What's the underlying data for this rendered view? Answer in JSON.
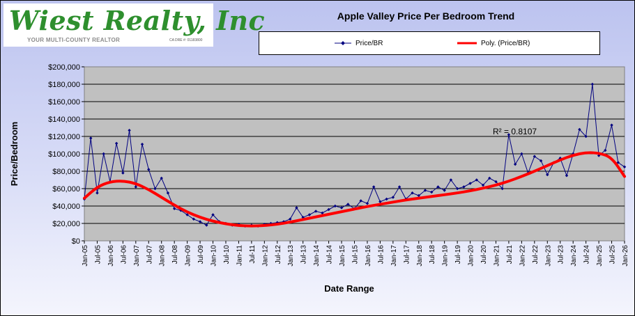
{
  "logo": {
    "name": "Wiest Realty, Inc",
    "tagline": "YOUR MULTI-COUNTY REALTOR",
    "license": "CA DRE #: 01183800"
  },
  "colors": {
    "series": "#000080",
    "trend": "#ff0000",
    "plot_bg": "#c0c0c0"
  },
  "chart_data": {
    "type": "line",
    "title": "Apple Valley Price Per Bedroom Trend",
    "xlabel": "Date Range",
    "ylabel": "Price/Bedroom",
    "ylim": [
      0,
      200000
    ],
    "yticks": [
      "$0",
      "$20,000",
      "$40,000",
      "$60,000",
      "$80,000",
      "$100,000",
      "$120,000",
      "$140,000",
      "$160,000",
      "$180,000",
      "$200,000"
    ],
    "xticks": [
      "Jan-05",
      "Jul-05",
      "Jan-06",
      "Jul-06",
      "Jan-07",
      "Jul-07",
      "Jan-08",
      "Jul-08",
      "Jan-09",
      "Jul-09",
      "Jan-10",
      "Jul-10",
      "Jan-11",
      "Jul-11",
      "Jan-12",
      "Jul-12",
      "Jan-13",
      "Jul-13",
      "Jan-14",
      "Jul-14",
      "Jan-15",
      "Jul-15",
      "Jan-16",
      "Jul-16",
      "Jan-17",
      "Jul-17",
      "Jan-18",
      "Jul-18",
      "Jan-19",
      "Jul-19",
      "Jan-20",
      "Jul-20",
      "Jan-21",
      "Jul-21",
      "Jan-22",
      "Jul-22",
      "Jan-23",
      "Jul-23",
      "Jan-24",
      "Jul-24",
      "Jan-25",
      "Jul-25",
      "Jan-26"
    ],
    "grid": true,
    "legend_position": "top",
    "annotation": "R² = 0.8107",
    "series": [
      {
        "name": "Price/BR",
        "marker": "diamond",
        "x": [
          "Jan-05",
          "Apr-05",
          "Jul-05",
          "Oct-05",
          "Jan-06",
          "Apr-06",
          "Jul-06",
          "Oct-06",
          "Jan-07",
          "Apr-07",
          "Jul-07",
          "Oct-07",
          "Jan-08",
          "Apr-08",
          "Jul-08",
          "Oct-08",
          "Jan-09",
          "Apr-09",
          "Jul-09",
          "Oct-09",
          "Jan-10",
          "Apr-10",
          "Jul-10",
          "Oct-10",
          "Jan-11",
          "Apr-11",
          "Jul-11",
          "Oct-11",
          "Jan-12",
          "Apr-12",
          "Jul-12",
          "Oct-12",
          "Jan-13",
          "Apr-13",
          "Jul-13",
          "Oct-13",
          "Jan-14",
          "Apr-14",
          "Jul-14",
          "Oct-14",
          "Jan-15",
          "Apr-15",
          "Jul-15",
          "Oct-15",
          "Jan-16",
          "Apr-16",
          "Jul-16",
          "Oct-16",
          "Jan-17",
          "Apr-17",
          "Jul-17",
          "Oct-17",
          "Jan-18",
          "Apr-18",
          "Jul-18",
          "Oct-18",
          "Jan-19",
          "Apr-19",
          "Jul-19",
          "Oct-19",
          "Jan-20",
          "Apr-20",
          "Jul-20",
          "Oct-20",
          "Jan-21",
          "Apr-21",
          "Jul-21",
          "Oct-21",
          "Jan-22",
          "Apr-22",
          "Jul-22",
          "Oct-22",
          "Jan-23",
          "Apr-23",
          "Jul-23",
          "Oct-23",
          "Jan-24",
          "Apr-24",
          "Jul-24",
          "Oct-24",
          "Jan-25",
          "Apr-25",
          "Jul-25",
          "Oct-25",
          "Jan-26"
        ],
        "values": [
          48000,
          118000,
          55000,
          100000,
          68000,
          112000,
          78000,
          127000,
          62000,
          111000,
          82000,
          60000,
          72000,
          55000,
          37000,
          35000,
          30000,
          25000,
          22000,
          18000,
          30000,
          22000,
          20000,
          18000,
          19000,
          17000,
          18000,
          17000,
          19000,
          20000,
          21000,
          22000,
          25000,
          38000,
          27000,
          30000,
          34000,
          32000,
          36000,
          40000,
          38000,
          42000,
          37000,
          46000,
          43000,
          62000,
          45000,
          48000,
          50000,
          62000,
          48000,
          55000,
          52000,
          58000,
          56000,
          62000,
          58000,
          70000,
          60000,
          62000,
          66000,
          70000,
          64000,
          72000,
          68000,
          60000,
          122000,
          88000,
          100000,
          78000,
          97000,
          92000,
          76000,
          90000,
          95000,
          75000,
          100000,
          128000,
          120000,
          180000,
          98000,
          104000,
          133000,
          90000,
          85000
        ]
      },
      {
        "name": "Poly. (Price/BR)",
        "x": [
          "Jan-05",
          "Jul-05",
          "Jan-06",
          "Jul-06",
          "Jan-07",
          "Jul-07",
          "Jan-08",
          "Jul-08",
          "Jan-09",
          "Jul-09",
          "Jan-10",
          "Jul-10",
          "Jan-11",
          "Jul-11",
          "Jan-12",
          "Jul-12",
          "Jan-13",
          "Jul-13",
          "Jan-14",
          "Jul-14",
          "Jan-15",
          "Jul-15",
          "Jan-16",
          "Jul-16",
          "Jan-17",
          "Jul-17",
          "Jan-18",
          "Jul-18",
          "Jan-19",
          "Jul-19",
          "Jan-20",
          "Jul-20",
          "Jan-21",
          "Jul-21",
          "Jan-22",
          "Jul-22",
          "Jan-23",
          "Jul-23",
          "Jan-24",
          "Jul-24",
          "Jan-25",
          "Jul-25",
          "Jan-26"
        ],
        "values": [
          49000,
          62000,
          68000,
          69000,
          66000,
          59000,
          50000,
          41000,
          33000,
          27000,
          22500,
          19500,
          17500,
          17000,
          17500,
          19000,
          21500,
          24500,
          27500,
          30500,
          33500,
          36500,
          39500,
          42000,
          44500,
          47000,
          49000,
          51000,
          53000,
          55000,
          57500,
          60500,
          64000,
          68500,
          74000,
          80000,
          86500,
          93000,
          98500,
          101500,
          101000,
          96000,
          74000
        ]
      }
    ]
  }
}
